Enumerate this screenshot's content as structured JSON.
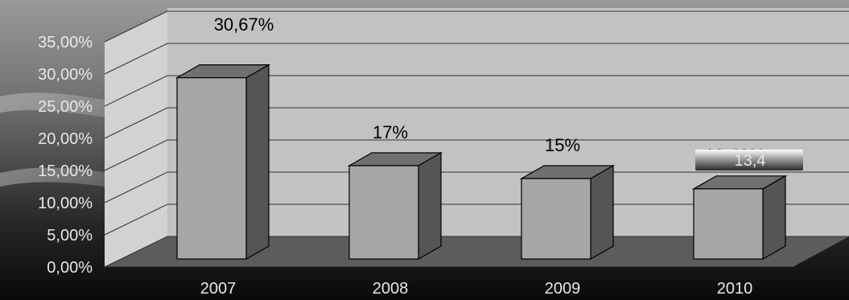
{
  "chart_data": {
    "type": "bar",
    "categories": [
      "2007",
      "2008",
      "2009",
      "2010"
    ],
    "values": [
      30.67,
      17,
      15,
      13.4
    ],
    "data_labels": [
      "30,67%",
      "17%",
      "15%",
      "13,40%"
    ],
    "yticks": [
      "0,00%",
      "5,00%",
      "10,00%",
      "15,00%",
      "20,00%",
      "25,00%",
      "30,00%",
      "35,00%"
    ],
    "ylim": [
      0,
      35
    ],
    "annotation": "13,4",
    "title": "",
    "xlabel": "",
    "ylabel": "",
    "grid": true,
    "three_d": true
  },
  "colors": {
    "background": "#000000",
    "wall": "#c2c2c2",
    "floor": "#5c5c5c",
    "bar_front": "#a6a6a6",
    "bar_top": "#707070",
    "bar_side": "#555555",
    "grid": "#333333",
    "axis_text": "#e8e8e8"
  }
}
